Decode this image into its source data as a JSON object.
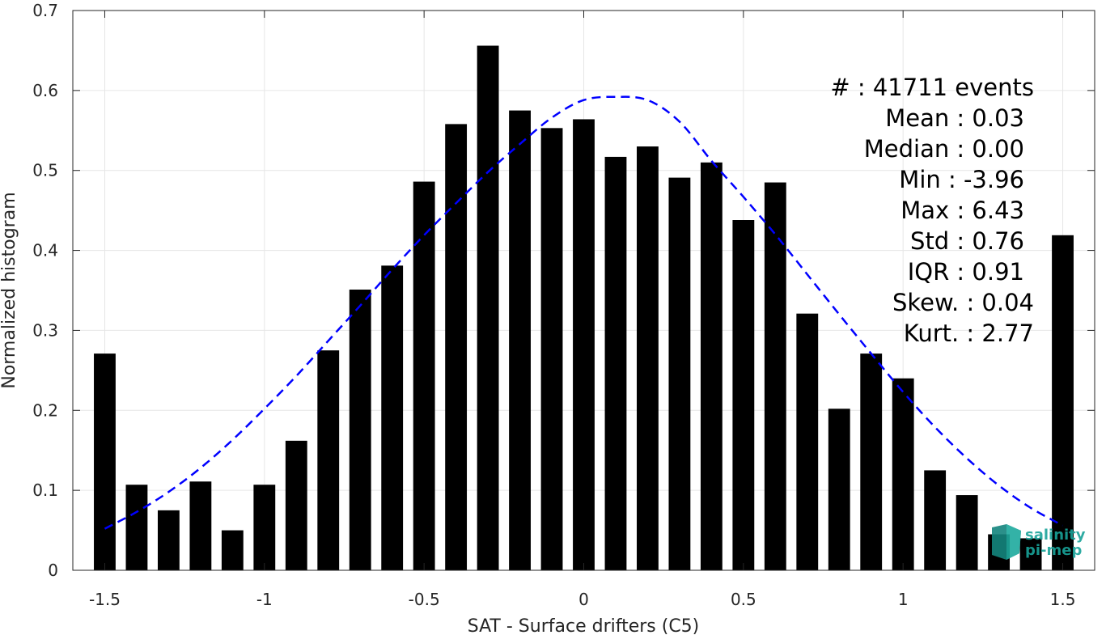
{
  "chart_data": {
    "type": "bar",
    "xlabel": "SAT - Surface drifters (C5)",
    "ylabel": "Normalized histogram",
    "xlim": [
      -1.6,
      1.6
    ],
    "ylim": [
      0,
      0.7
    ],
    "xticks": [
      -1.5,
      -1,
      -0.5,
      0,
      0.5,
      1,
      1.5
    ],
    "xtick_labels": [
      "-1.5",
      "-1",
      "-0.5",
      "0",
      "0.5",
      "1",
      "1.5"
    ],
    "yticks": [
      0,
      0.1,
      0.2,
      0.3,
      0.4,
      0.5,
      0.6,
      0.7
    ],
    "ytick_labels": [
      "0",
      "0.1",
      "0.2",
      "0.3",
      "0.4",
      "0.5",
      "0.6",
      "0.7"
    ],
    "grid": true,
    "bar_color": "#000000",
    "bar_x": [
      -1.5,
      -1.4,
      -1.3,
      -1.2,
      -1.1,
      -1.0,
      -0.9,
      -0.8,
      -0.7,
      -0.6,
      -0.5,
      -0.4,
      -0.3,
      -0.2,
      -0.1,
      0.0,
      0.1,
      0.2,
      0.3,
      0.4,
      0.5,
      0.6,
      0.7,
      0.8,
      0.9,
      1.0,
      1.1,
      1.2,
      1.3,
      1.4,
      1.5
    ],
    "values": [
      0.271,
      0.107,
      0.075,
      0.111,
      0.05,
      0.107,
      0.162,
      0.275,
      0.351,
      0.381,
      0.486,
      0.558,
      0.656,
      0.575,
      0.553,
      0.564,
      0.517,
      0.53,
      0.491,
      0.51,
      0.438,
      0.485,
      0.321,
      0.202,
      0.271,
      0.24,
      0.125,
      0.094,
      0.045,
      0.04,
      0.419
    ],
    "fit_curve": {
      "style": "dashed",
      "color": "#0000ff",
      "mean": 0.03,
      "std": 0.76,
      "x": [
        -1.5,
        -1.4,
        -1.3,
        -1.2,
        -1.1,
        -1.0,
        -0.9,
        -0.8,
        -0.7,
        -0.6,
        -0.5,
        -0.4,
        -0.3,
        -0.2,
        -0.1,
        0.0,
        0.1,
        0.2,
        0.3,
        0.4,
        0.5,
        0.6,
        0.7,
        0.8,
        0.9,
        1.0,
        1.1,
        1.2,
        1.3,
        1.4,
        1.5
      ],
      "y": [
        0.052,
        0.073,
        0.098,
        0.128,
        0.163,
        0.202,
        0.243,
        0.287,
        0.331,
        0.376,
        0.419,
        0.459,
        0.498,
        0.533,
        0.566,
        0.588,
        0.592,
        0.588,
        0.561,
        0.512,
        0.467,
        0.42,
        0.37,
        0.32,
        0.271,
        0.223,
        0.179,
        0.14,
        0.106,
        0.078,
        0.056
      ]
    },
    "stats": [
      {
        "label": "#  : 41711 events"
      },
      {
        "label": "Mean : 0.03"
      },
      {
        "label": "Median : 0.00"
      },
      {
        "label": "Min : -3.96"
      },
      {
        "label": "Max : 6.43"
      },
      {
        "label": "Std : 0.76"
      },
      {
        "label": "IQR : 0.91"
      },
      {
        "label": "Skew. : 0.04"
      },
      {
        "label": "Kurt. : 2.77"
      }
    ]
  },
  "logo": {
    "line1": "salinity",
    "line2": "pi-mep",
    "color": "#19a39a"
  }
}
